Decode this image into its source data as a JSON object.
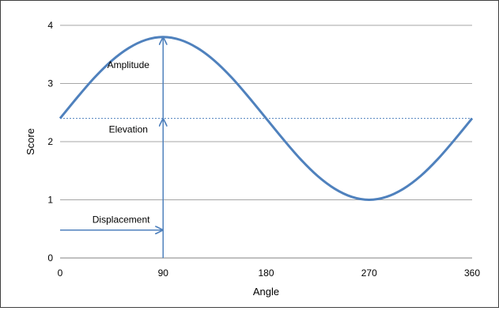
{
  "chart_data": {
    "type": "line",
    "xlabel": "Angle",
    "ylabel": "Score",
    "xlim": [
      0,
      360
    ],
    "ylim": [
      0,
      4
    ],
    "xticks": [
      0,
      90,
      180,
      270,
      360
    ],
    "yticks": [
      0,
      1,
      2,
      3,
      4
    ],
    "grid": "horizontal",
    "series": [
      {
        "color": "#4F81BD",
        "x": [
          0,
          15,
          30,
          45,
          60,
          75,
          90,
          105,
          120,
          135,
          150,
          165,
          180,
          195,
          210,
          225,
          240,
          255,
          270,
          285,
          300,
          315,
          330,
          345,
          360
        ],
        "y": [
          2.4,
          2.76,
          3.1,
          3.39,
          3.61,
          3.75,
          3.8,
          3.75,
          3.61,
          3.39,
          3.1,
          2.76,
          2.4,
          2.04,
          1.7,
          1.41,
          1.19,
          1.05,
          1.0,
          1.05,
          1.19,
          1.41,
          1.7,
          2.04,
          2.4
        ]
      }
    ],
    "reference_line": {
      "y": 2.4,
      "style": "dashed"
    },
    "annotations": [
      {
        "label": "Amplitude",
        "arrow": "vertical",
        "x": 90,
        "from": 2.4,
        "to": 3.8
      },
      {
        "label": "Elevation",
        "arrow": "vertical",
        "x": 90,
        "from": 0,
        "to": 2.4
      },
      {
        "label": "Displacement",
        "arrow": "horizontal",
        "y": 0.48,
        "from": 0,
        "to": 90
      }
    ]
  }
}
